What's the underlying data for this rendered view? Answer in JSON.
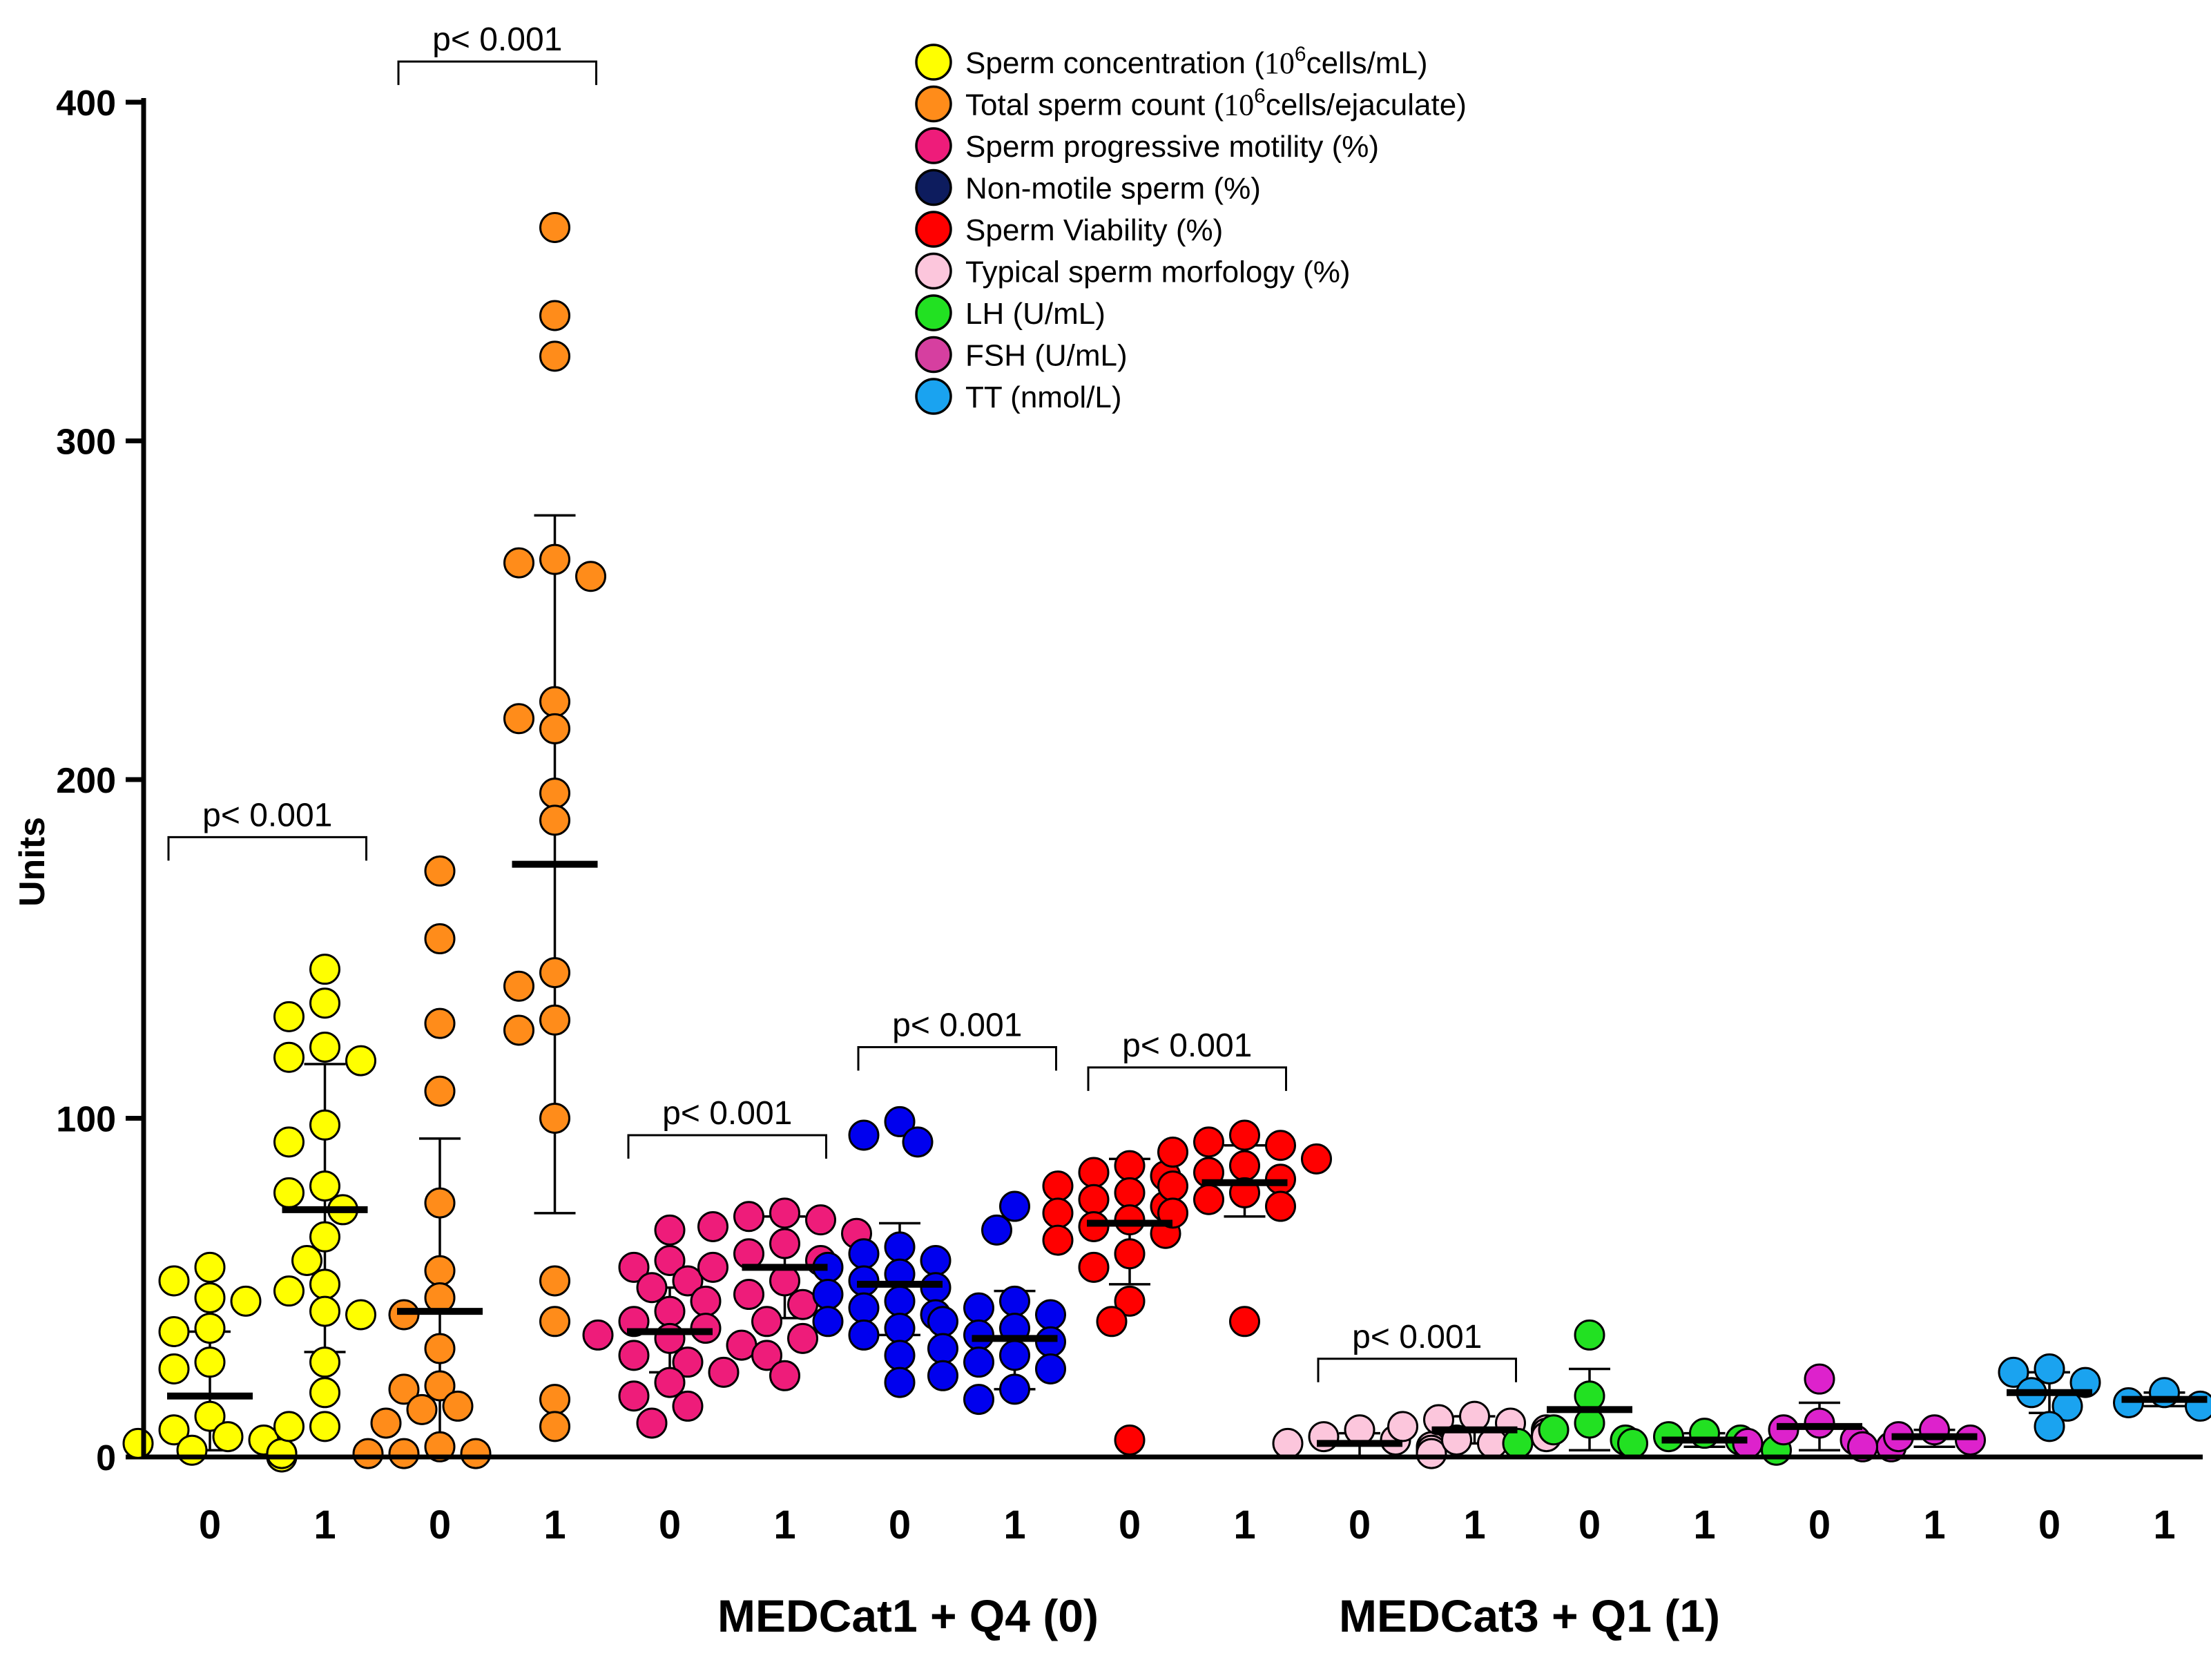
{
  "chart_data": {
    "type": "scatter",
    "title": "",
    "ylabel": "Units",
    "xlabel": "",
    "ylim": [
      0,
      400
    ],
    "yticks": [
      0,
      100,
      200,
      300,
      400
    ],
    "group_labels": [
      "MEDCat1 + Q4 (0)",
      "MEDCat3 + Q1 (1)"
    ],
    "legend": [
      {
        "label": "Sperm concentration (",
        "sup_base": "10",
        "sup_exp": "6",
        "suffix": "cells/mL)",
        "color": "#ffff00"
      },
      {
        "label": "Total sperm count (",
        "sup_base": "10",
        "sup_exp": "6",
        "suffix": "cells/ejaculate)",
        "color": "#ff8c1a"
      },
      {
        "label": "Sperm progressive motility (%)",
        "color": "#ee1c7a"
      },
      {
        "label": "Non-motile sperm (%)",
        "color": "#0d1c5e"
      },
      {
        "label": "Sperm Viability (%)",
        "color": "#ff0000"
      },
      {
        "label": "Typical sperm morfology (%)",
        "color": "#fcc6dc"
      },
      {
        "label": "LH (U/mL)",
        "color": "#22e122"
      },
      {
        "label": "FSH (U/mL)",
        "color": "#d63fa0"
      },
      {
        "label": "TT (nmol/L)",
        "color": "#1aa3f0"
      }
    ],
    "series": [
      {
        "name": "Sperm concentration",
        "group": "0",
        "color": "#ffff00",
        "mean": 18,
        "sd_low": 2,
        "sd_high": 37,
        "values": [
          56,
          52,
          47,
          46,
          38,
          37,
          28,
          26,
          12,
          8,
          6,
          5,
          4,
          2,
          1,
          0,
          1
        ]
      },
      {
        "name": "Sperm concentration",
        "group": "1",
        "color": "#ffff00",
        "mean": 73,
        "sd_low": 31,
        "sd_high": 116,
        "values": [
          144,
          134,
          130,
          121,
          118,
          117,
          98,
          93,
          80,
          78,
          73,
          65,
          58,
          51,
          49,
          43,
          42,
          28,
          19,
          9,
          9
        ]
      },
      {
        "name": "Total sperm count",
        "group": "0",
        "color": "#ff8c1a",
        "mean": 43,
        "sd_low": 0,
        "sd_high": 94,
        "values": [
          173,
          153,
          128,
          108,
          75,
          55,
          47,
          42,
          32,
          21,
          20,
          15,
          14,
          10,
          3,
          1,
          1,
          1
        ]
      },
      {
        "name": "Total sperm count",
        "group": "1",
        "color": "#ff8c1a",
        "mean": 175,
        "sd_low": 72,
        "sd_high": 278,
        "values": [
          363,
          337,
          325,
          265,
          264,
          260,
          223,
          218,
          215,
          196,
          188,
          143,
          139,
          129,
          126,
          100,
          52,
          40,
          17,
          9
        ]
      },
      {
        "name": "Sperm progressive motility",
        "group": "0",
        "color": "#ee1c7a",
        "mean": 37,
        "sd_low": 25,
        "sd_high": 50,
        "values": [
          67,
          58,
          56,
          52,
          50,
          46,
          43,
          40,
          38,
          36,
          35,
          33,
          30,
          28,
          25,
          22,
          18,
          15,
          10
        ]
      },
      {
        "name": "Sperm progressive motility",
        "group": "1",
        "color": "#ee1c7a",
        "mean": 56,
        "sd_low": 41,
        "sd_high": 71,
        "values": [
          72,
          71,
          70,
          68,
          66,
          63,
          60,
          58,
          56,
          52,
          48,
          45,
          40,
          35,
          30,
          24
        ]
      },
      {
        "name": "Non-motile sperm",
        "group": "0",
        "color": "#0000ee",
        "mean": 51,
        "sd_low": 36,
        "sd_high": 69,
        "values": [
          99,
          95,
          93,
          62,
          60,
          58,
          56,
          54,
          52,
          50,
          48,
          46,
          44,
          42,
          40,
          38,
          36,
          30,
          22
        ]
      },
      {
        "name": "Non-motile sperm",
        "group": "1",
        "color": "#0000ee",
        "mean": 35,
        "sd_low": 20,
        "sd_high": 49,
        "values": [
          74,
          67,
          46,
          44,
          42,
          40,
          38,
          36,
          34,
          32,
          30,
          28,
          26,
          24,
          20,
          17
        ]
      },
      {
        "name": "Sperm Viability",
        "group": "0",
        "color": "#ff0000",
        "mean": 69,
        "sd_low": 51,
        "sd_high": 88,
        "values": [
          86,
          84,
          83,
          80,
          78,
          76,
          74,
          72,
          70,
          68,
          66,
          64,
          60,
          56,
          46,
          40,
          5
        ]
      },
      {
        "name": "Sperm Viability",
        "group": "1",
        "color": "#ff0000",
        "mean": 81,
        "sd_low": 71,
        "sd_high": 92,
        "values": [
          95,
          93,
          92,
          90,
          88,
          86,
          84,
          82,
          80,
          78,
          76,
          74,
          72,
          40
        ]
      },
      {
        "name": "Typical sperm morfology",
        "group": "0",
        "color": "#fcc6dc",
        "mean": 4,
        "sd_low": 0,
        "sd_high": 7,
        "values": [
          8,
          6,
          5,
          4,
          3,
          2,
          1
        ]
      },
      {
        "name": "Typical sperm morfology",
        "group": "1",
        "color": "#fcc6dc",
        "mean": 8,
        "sd_low": 4,
        "sd_high": 12,
        "values": [
          12,
          11,
          10,
          9,
          8,
          7,
          6,
          5,
          4
        ]
      },
      {
        "name": "LH",
        "group": "0",
        "color": "#22e122",
        "mean": 14,
        "sd_low": 2,
        "sd_high": 26,
        "values": [
          36,
          18,
          10,
          8,
          5,
          4
        ]
      },
      {
        "name": "LH",
        "group": "1",
        "color": "#22e122",
        "mean": 5,
        "sd_low": 3,
        "sd_high": 7,
        "values": [
          7,
          6,
          5,
          4,
          2
        ]
      },
      {
        "name": "FSH",
        "group": "0",
        "color": "#dd22cc",
        "mean": 9,
        "sd_low": 2,
        "sd_high": 16,
        "values": [
          23,
          10,
          8,
          5,
          4,
          3
        ]
      },
      {
        "name": "FSH",
        "group": "1",
        "color": "#dd22cc",
        "mean": 6,
        "sd_low": 3,
        "sd_high": 8,
        "values": [
          8,
          6,
          5,
          3
        ]
      },
      {
        "name": "TT",
        "group": "0",
        "color": "#1aa3f0",
        "mean": 19,
        "sd_low": 13,
        "sd_high": 25,
        "values": [
          26,
          25,
          22,
          19,
          15,
          9
        ]
      },
      {
        "name": "TT",
        "group": "1",
        "color": "#1aa3f0",
        "mean": 17,
        "sd_low": 15,
        "sd_high": 19,
        "values": [
          19,
          16,
          15
        ]
      }
    ],
    "x_tick_labels": [
      "0",
      "1",
      "0",
      "1",
      "0",
      "1",
      "0",
      "1",
      "0",
      "1",
      "0",
      "1",
      "0",
      "1",
      "0",
      "1",
      "0",
      "1"
    ],
    "annotations": [
      {
        "label": "p< 0.001",
        "from_series": 0,
        "to_series": 1,
        "y": 183
      },
      {
        "label": "p< 0.001",
        "from_series": 2,
        "to_series": 3,
        "y": 412
      },
      {
        "label": "p< 0.001",
        "from_series": 4,
        "to_series": 5,
        "y": 95
      },
      {
        "label": "p< 0.001",
        "from_series": 6,
        "to_series": 7,
        "y": 121
      },
      {
        "label": "p< 0.001",
        "from_series": 8,
        "to_series": 9,
        "y": 115
      },
      {
        "label": "p< 0.001",
        "from_series": 10,
        "to_series": 11,
        "y": 29
      }
    ]
  }
}
